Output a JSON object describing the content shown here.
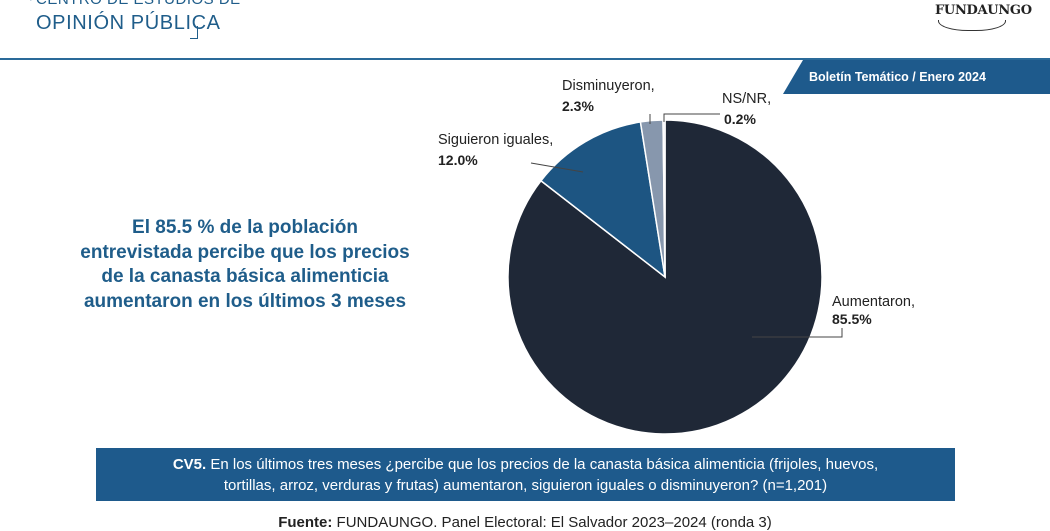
{
  "header": {
    "center_top": "CENTRO DE ESTUDIOS DE",
    "center_name": "OPINIÓN PÚBLICA",
    "logo_text": "FUNDAUNGO",
    "bulletin": "Boletín Temático / Enero 2024"
  },
  "headline": {
    "lines": [
      "El 85.5 % de la población",
      "entrevistada percibe que los precios",
      "de la canasta básica alimenticia",
      "aumentaron en los últimos 3 meses"
    ]
  },
  "chart_data": {
    "type": "pie",
    "title": "",
    "slices": [
      {
        "label": "Aumentaron,",
        "value": 85.5,
        "value_label": "85.5%",
        "color": "#1f2837"
      },
      {
        "label": "Siguieron iguales,",
        "value": 12.0,
        "value_label": "12.0%",
        "color": "#1d5582"
      },
      {
        "label": "Disminuyeron,",
        "value": 2.3,
        "value_label": "2.3%",
        "color": "#8797ad"
      },
      {
        "label": "NS/NR,",
        "value": 0.2,
        "value_label": "0.2%",
        "color": "#dfe5ee"
      }
    ]
  },
  "question": {
    "code": "CV5.",
    "line1": " En los últimos tres meses ¿percibe que los precios de la canasta básica alimenticia (frijoles, huevos,",
    "line2": "tortillas, arroz, verduras y frutas) aumentaron, siguieron iguales o disminuyeron? (n=1,201)"
  },
  "source": {
    "label": "Fuente:",
    "text": " FUNDAUNGO. Panel Electoral: El Salvador 2023–2024 (ronda 3)"
  }
}
